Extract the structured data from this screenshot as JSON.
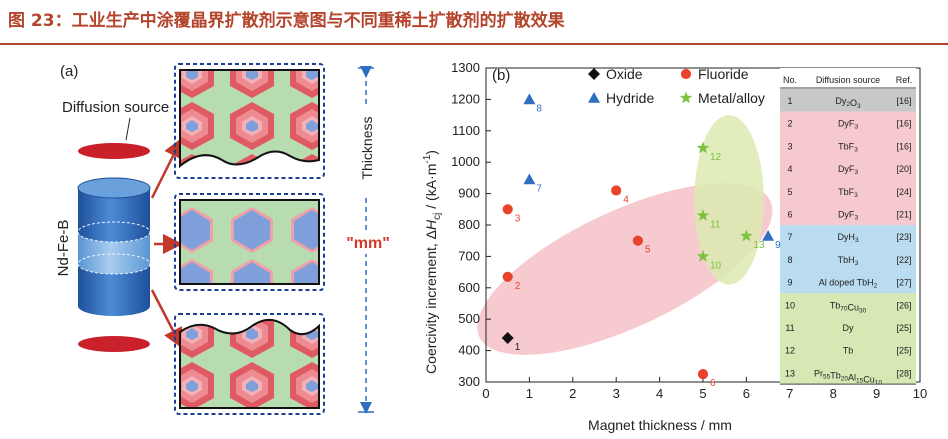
{
  "figure": {
    "title": "图 23：工业生产中涂覆晶界扩散剂示意图与不同重稀土扩散剂的扩散效果"
  },
  "panel_a": {
    "label": "(a)",
    "diffusion_source": "Diffusion source",
    "magnet": "Nd-Fe-B",
    "thickness": "Thickness",
    "mm": "\"mm\""
  },
  "chart_data": {
    "type": "scatter",
    "panel_label": "(b)",
    "xlabel": "Magnet thickness / mm",
    "ylabel_parts": {
      "pre": "Coercivity increment, Δ",
      "italic": "H",
      "sub": "cj",
      "post": " / (kA·m",
      "sup": "-1",
      "end": ")"
    },
    "xlim": [
      0,
      10
    ],
    "ylim": [
      300,
      1300
    ],
    "xticks": [
      0,
      1,
      2,
      3,
      4,
      5,
      6,
      7,
      8,
      9,
      10
    ],
    "yticks": [
      300,
      400,
      500,
      600,
      700,
      800,
      900,
      1000,
      1100,
      1200,
      1300
    ],
    "legend": [
      {
        "name": "Oxide",
        "marker": "diamond",
        "color": "#111111"
      },
      {
        "name": "Fluoride",
        "marker": "circle",
        "color": "#e8442c"
      },
      {
        "name": "Hydride",
        "marker": "triangle",
        "color": "#2f6fc0"
      },
      {
        "name": "Metal/alloy",
        "marker": "star",
        "color": "#7fc241"
      }
    ],
    "series": [
      {
        "name": "Oxide",
        "points": [
          {
            "x": 0.5,
            "y": 440,
            "label": "1"
          }
        ]
      },
      {
        "name": "Fluoride",
        "points": [
          {
            "x": 0.5,
            "y": 635,
            "label": "2"
          },
          {
            "x": 0.5,
            "y": 850,
            "label": "3"
          },
          {
            "x": 3.0,
            "y": 910,
            "label": "4"
          },
          {
            "x": 3.5,
            "y": 750,
            "label": "5"
          },
          {
            "x": 5.0,
            "y": 325,
            "label": "6"
          }
        ]
      },
      {
        "name": "Hydride",
        "points": [
          {
            "x": 1.0,
            "y": 945,
            "label": "7"
          },
          {
            "x": 1.0,
            "y": 1200,
            "label": "8"
          },
          {
            "x": 6.5,
            "y": 765,
            "label": "9"
          }
        ]
      },
      {
        "name": "Metal/alloy",
        "points": [
          {
            "x": 5.0,
            "y": 700,
            "label": "10"
          },
          {
            "x": 5.0,
            "y": 830,
            "label": "11"
          },
          {
            "x": 5.0,
            "y": 1045,
            "label": "12"
          },
          {
            "x": 6.0,
            "y": 765,
            "label": "13"
          }
        ]
      }
    ],
    "regions": [
      {
        "color": "#f6c1c8",
        "cx": 3.2,
        "cy": 660,
        "rx": 3.7,
        "ry": 185,
        "rotate": 25
      },
      {
        "color": "#dceab0",
        "cx": 5.6,
        "cy": 880,
        "rx": 0.8,
        "ry": 270,
        "rotate": 0
      }
    ],
    "table": {
      "headers": [
        "No.",
        "Diffusion source",
        "Ref."
      ],
      "rows": [
        {
          "no": "1",
          "source": "Dy2O3",
          "ref": "[16]",
          "group": "oxide"
        },
        {
          "no": "2",
          "source": "DyF3",
          "ref": "[16]",
          "group": "fluoride"
        },
        {
          "no": "3",
          "source": "TbF3",
          "ref": "[16]",
          "group": "fluoride"
        },
        {
          "no": "4",
          "source": "DyF3",
          "ref": "[20]",
          "group": "fluoride"
        },
        {
          "no": "5",
          "source": "TbF3",
          "ref": "[24]",
          "group": "fluoride"
        },
        {
          "no": "6",
          "source": "DyF3",
          "ref": "[21]",
          "group": "fluoride"
        },
        {
          "no": "7",
          "source": "DyH3",
          "ref": "[23]",
          "group": "hydride"
        },
        {
          "no": "8",
          "source": "TbH3",
          "ref": "[22]",
          "group": "hydride"
        },
        {
          "no": "9",
          "source": "Al doped TbH2",
          "ref": "[27]",
          "group": "hydride"
        },
        {
          "no": "10",
          "source": "Tb70Cu30",
          "ref": "[26]",
          "group": "metal"
        },
        {
          "no": "11",
          "source": "Dy",
          "ref": "[25]",
          "group": "metal"
        },
        {
          "no": "12",
          "source": "Tb",
          "ref": "[25]",
          "group": "metal"
        },
        {
          "no": "13",
          "source": "Pr55Tb20Al15Cu10",
          "ref": "[28]",
          "group": "metal"
        }
      ],
      "group_colors": {
        "oxide": "#c8c8c8",
        "fluoride": "#f6c9cf",
        "hydride": "#b9dcf0",
        "metal": "#d6e8b4"
      }
    }
  }
}
